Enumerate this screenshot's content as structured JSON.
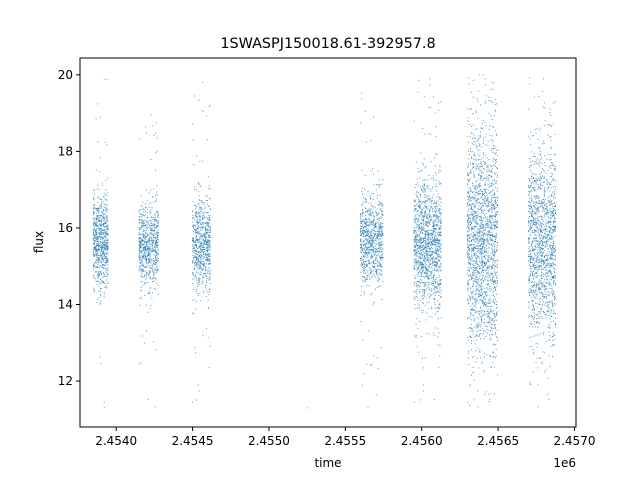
{
  "chart_data": {
    "type": "scatter",
    "title": "1SWASPJ150018.61-392957.8",
    "xlabel": "time",
    "ylabel": "flux",
    "x_offset_label": "1e6",
    "xlim": [
      2453763,
      2457010
    ],
    "ylim": [
      10.8,
      20.44
    ],
    "xticks": [
      2454000,
      2454500,
      2455000,
      2455500,
      2456000,
      2456500,
      2457000
    ],
    "xtick_labels": [
      "2.4540",
      "2.4545",
      "2.4550",
      "2.4555",
      "2.4560",
      "2.4565",
      "2.4570"
    ],
    "yticks": [
      12,
      14,
      16,
      18,
      20
    ],
    "ytick_labels": [
      "12",
      "14",
      "16",
      "18",
      "20"
    ],
    "grid": false,
    "color": "#1f77b4",
    "clusters": [
      {
        "x": [
          2453850,
          2453950
        ],
        "core": [
          14.5,
          16.8
        ],
        "range": [
          11.3,
          20.0
        ],
        "n": 700
      },
      {
        "x": [
          2454150,
          2454280
        ],
        "core": [
          14.5,
          16.6
        ],
        "range": [
          11.3,
          19.2
        ],
        "n": 700
      },
      {
        "x": [
          2454500,
          2454620
        ],
        "core": [
          14.4,
          16.8
        ],
        "range": [
          11.3,
          19.9
        ],
        "n": 700
      },
      {
        "x": [
          2455600,
          2455750
        ],
        "core": [
          14.5,
          16.8
        ],
        "range": [
          11.3,
          19.6
        ],
        "n": 800
      },
      {
        "x": [
          2455950,
          2456130
        ],
        "core": [
          14.0,
          17.2
        ],
        "range": [
          11.3,
          20.0
        ],
        "n": 1300
      },
      {
        "x": [
          2456300,
          2456500
        ],
        "core": [
          12.8,
          18.5
        ],
        "range": [
          11.3,
          20.0
        ],
        "n": 1800
      },
      {
        "x": [
          2456700,
          2456880
        ],
        "core": [
          13.2,
          18.0
        ],
        "range": [
          11.3,
          20.0
        ],
        "n": 1400
      }
    ],
    "isolated_points": [
      {
        "x": 2455250,
        "y": 11.3
      }
    ]
  }
}
